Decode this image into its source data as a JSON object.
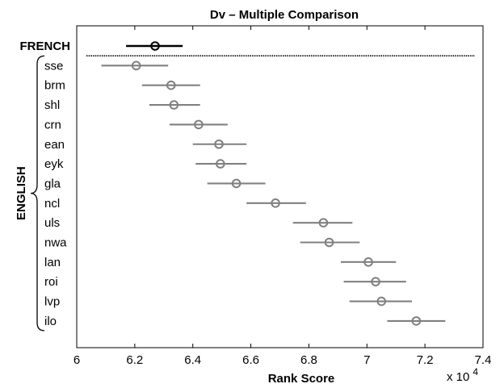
{
  "chart_data": {
    "type": "scatter",
    "title": "Dv – Multiple Comparison",
    "xlabel": "Rank Score",
    "x_multiplier_label": "x 10",
    "x_multiplier_exponent": "4",
    "xlim": [
      60000,
      74000
    ],
    "xticks": [
      60000,
      62000,
      64000,
      66000,
      68000,
      70000,
      72000,
      74000
    ],
    "xtick_labels": [
      "6",
      "6.2",
      "6.4",
      "6.6",
      "6.8",
      "7",
      "7.2",
      "7.4"
    ],
    "groups": [
      {
        "name": "FRENCH",
        "categories": [
          "FRENCH"
        ]
      },
      {
        "name": "ENGLISH",
        "categories": [
          "sse",
          "brm",
          "shl",
          "crn",
          "ean",
          "eyk",
          "gla",
          "ncl",
          "uls",
          "nwa",
          "lan",
          "roi",
          "lvp",
          "ilo"
        ]
      }
    ],
    "categories": [
      "FRENCH",
      "sse",
      "brm",
      "shl",
      "crn",
      "ean",
      "eyk",
      "gla",
      "ncl",
      "uls",
      "nwa",
      "lan",
      "roi",
      "lvp",
      "ilo"
    ],
    "means": [
      62700,
      62050,
      63250,
      63350,
      64200,
      64900,
      64950,
      65500,
      66850,
      68500,
      68700,
      70050,
      70300,
      70500,
      71700
    ],
    "ci_lower": [
      61700,
      60850,
      62250,
      62500,
      63200,
      64000,
      64100,
      64500,
      65850,
      67450,
      67700,
      69100,
      69200,
      69400,
      70700
    ],
    "ci_upper": [
      63650,
      63150,
      64250,
      64250,
      65200,
      65850,
      65850,
      66500,
      67900,
      69500,
      69750,
      71000,
      71350,
      71550,
      72700
    ],
    "highlighted": "FRENCH",
    "colors": {
      "highlight": "#000000",
      "other": "#808080"
    }
  }
}
